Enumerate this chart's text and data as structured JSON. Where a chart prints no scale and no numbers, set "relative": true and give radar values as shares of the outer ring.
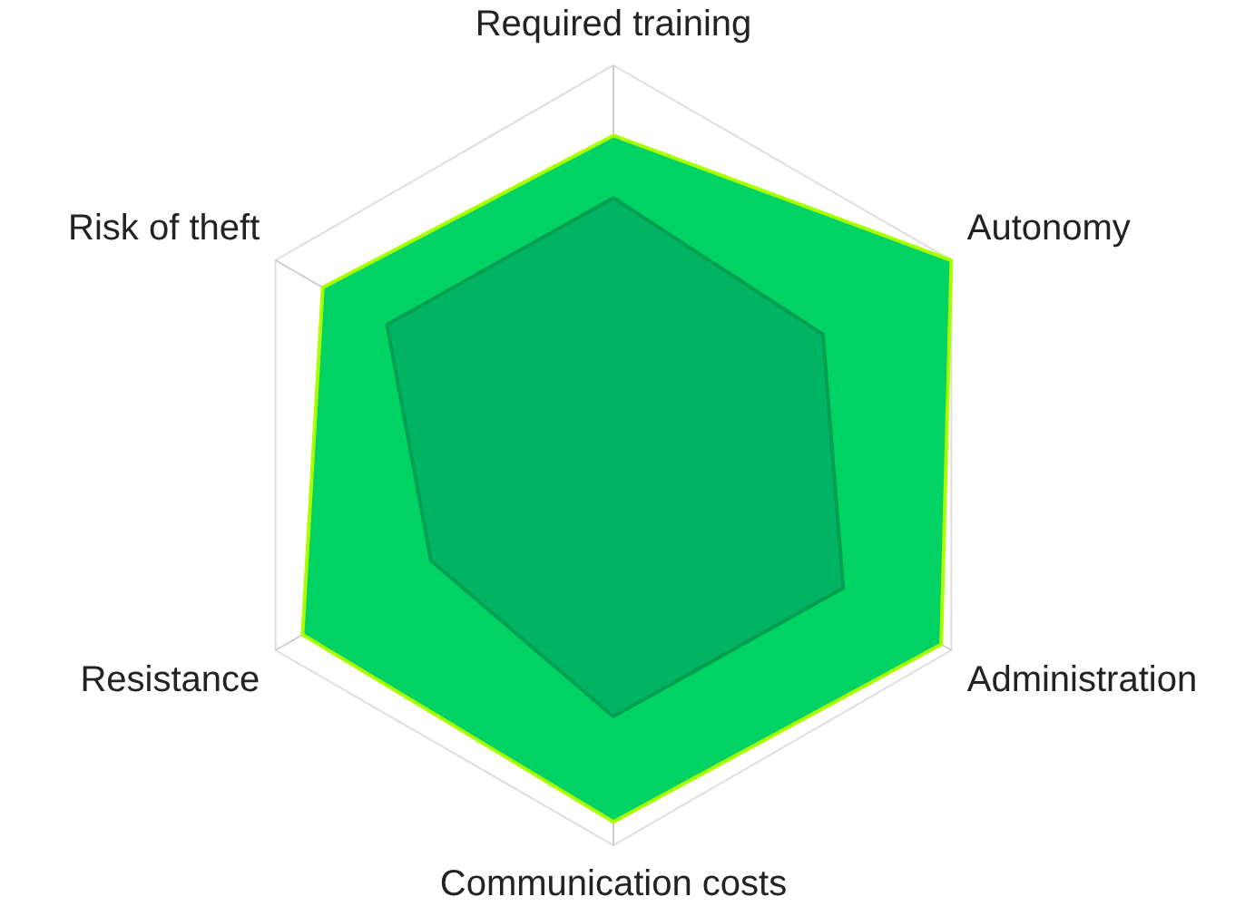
{
  "chart_data": {
    "type": "radar",
    "relative": true,
    "grid": true,
    "legend": false,
    "marker": "none",
    "categories": [
      "Required training",
      "Autonomy",
      "Administration",
      "Communication costs",
      "Resistance",
      "Risk of theft"
    ],
    "series": [
      {
        "color": "#00d264",
        "values": [
          0.82,
          1.0,
          0.97,
          0.94,
          0.92,
          0.86
        ]
      },
      {
        "color": "#00b464",
        "values": [
          0.66,
          0.62,
          0.68,
          0.67,
          0.54,
          0.67
        ]
      }
    ]
  }
}
